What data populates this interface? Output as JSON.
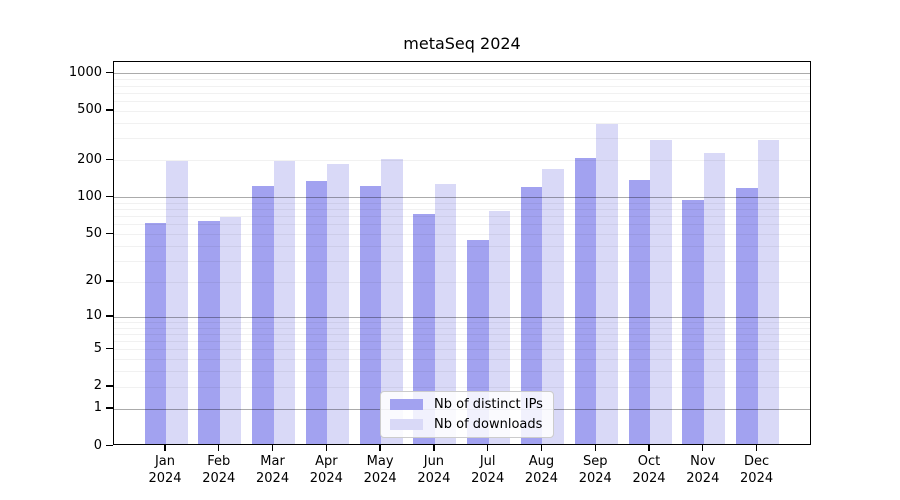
{
  "title": "metaSeq 2024",
  "chart_data": {
    "type": "bar",
    "title": "metaSeq 2024",
    "categories": [
      "Jan",
      "Feb",
      "Mar",
      "Apr",
      "May",
      "Jun",
      "Jul",
      "Aug",
      "Sep",
      "Oct",
      "Nov",
      "Dec"
    ],
    "year_label": "2024",
    "series": [
      {
        "name": "Nb of distinct IPs",
        "color": "#a2a2f0",
        "values": [
          59,
          61,
          119,
          130,
          118,
          70,
          43,
          117,
          201,
          132,
          92,
          115
        ]
      },
      {
        "name": "Nb of downloads",
        "color": "#d9d9f7",
        "values": [
          190,
          66,
          188,
          180,
          195,
          123,
          74,
          164,
          379,
          281,
          219,
          280
        ]
      }
    ],
    "xlabel": "",
    "ylabel": "",
    "yscale": "log1p",
    "yticks": [
      0,
      1,
      2,
      5,
      10,
      20,
      50,
      100,
      200,
      500,
      1000
    ],
    "ylim": [
      0,
      1100
    ],
    "grid": true,
    "legend_position": "inside-bottom-center"
  }
}
